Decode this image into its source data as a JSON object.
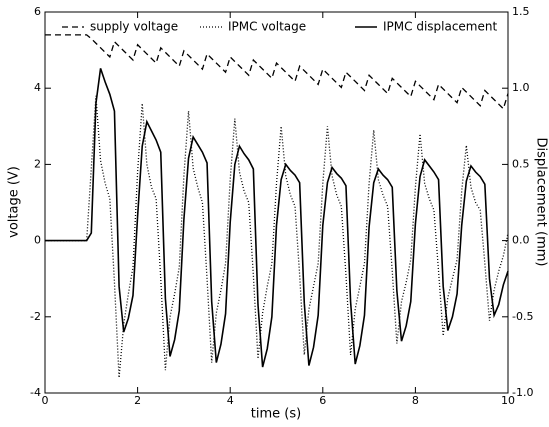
{
  "chart_data": {
    "type": "line",
    "xlabel": "time (s)",
    "ylabel": "voltage (V)",
    "y2label": "Displacement (mm)",
    "xlim": [
      0,
      10
    ],
    "ylim": [
      -4,
      6
    ],
    "y2lim": [
      -1.0,
      1.5
    ],
    "xticks": [
      0,
      2,
      4,
      6,
      8,
      10
    ],
    "yticks": [
      -4,
      -2,
      0,
      2,
      4,
      6
    ],
    "y2ticks": [
      {
        "value": -1.0,
        "label": "-1.0"
      },
      -0.5,
      {
        "value": 0.0,
        "label": "0.0"
      },
      0.5,
      {
        "value": 1.0,
        "label": "1.0"
      },
      1.5
    ],
    "legend": "top",
    "x": [
      0,
      0.1,
      0.2,
      0.3,
      0.4,
      0.5,
      0.6,
      0.7,
      0.8,
      0.9,
      1.0,
      1.1,
      1.2,
      1.3,
      1.4,
      1.5,
      1.6,
      1.7,
      1.8,
      1.9,
      2.0,
      2.1,
      2.2,
      2.3,
      2.4,
      2.5,
      2.6,
      2.7,
      2.8,
      2.9,
      3.0,
      3.1,
      3.2,
      3.3,
      3.4,
      3.5,
      3.6,
      3.7,
      3.8,
      3.9,
      4.0,
      4.1,
      4.2,
      4.3,
      4.4,
      4.5,
      4.6,
      4.7,
      4.8,
      4.9,
      5.0,
      5.1,
      5.2,
      5.3,
      5.4,
      5.5,
      5.6,
      5.7,
      5.8,
      5.9,
      6.0,
      6.1,
      6.2,
      6.3,
      6.4,
      6.5,
      6.6,
      6.7,
      6.8,
      6.9,
      7.0,
      7.1,
      7.2,
      7.3,
      7.4,
      7.5,
      7.6,
      7.7,
      7.8,
      7.9,
      8.0,
      8.1,
      8.2,
      8.3,
      8.4,
      8.5,
      8.6,
      8.7,
      8.8,
      8.9,
      9.0,
      9.1,
      9.2,
      9.3,
      9.4,
      9.5,
      9.6,
      9.7,
      9.8,
      9.9,
      10.0
    ],
    "series": [
      {
        "name": "supply voltage",
        "color": "#000000",
        "line_style": "dashed",
        "values": [
          5.4,
          5.4,
          5.4,
          5.4,
          5.4,
          5.4,
          5.4,
          5.4,
          5.4,
          5.4,
          5.3,
          5.18,
          5.06,
          4.94,
          4.82,
          5.22,
          5.1,
          4.98,
          4.86,
          4.74,
          5.14,
          5.02,
          4.9,
          4.78,
          4.66,
          5.06,
          4.94,
          4.82,
          4.7,
          4.58,
          4.98,
          4.86,
          4.74,
          4.62,
          4.5,
          4.9,
          4.78,
          4.66,
          4.54,
          4.42,
          4.82,
          4.7,
          4.58,
          4.46,
          4.34,
          4.74,
          4.62,
          4.5,
          4.38,
          4.26,
          4.66,
          4.54,
          4.42,
          4.3,
          4.18,
          4.58,
          4.46,
          4.34,
          4.22,
          4.1,
          4.5,
          4.38,
          4.26,
          4.14,
          4.02,
          4.42,
          4.3,
          4.18,
          4.06,
          3.94,
          4.34,
          4.22,
          4.1,
          3.98,
          3.86,
          4.26,
          4.14,
          4.02,
          3.9,
          3.78,
          4.18,
          4.06,
          3.94,
          3.82,
          3.7,
          4.1,
          3.98,
          3.86,
          3.74,
          3.62,
          4.02,
          3.9,
          3.78,
          3.66,
          3.54,
          3.94,
          3.82,
          3.7,
          3.58,
          3.46,
          3.86
        ]
      },
      {
        "name": "IPMC voltage",
        "color": "#000000",
        "line_style": "dotted",
        "values": [
          0,
          0,
          0,
          0,
          0,
          0,
          0,
          0,
          0,
          0,
          1.9,
          3.8,
          2.1,
          1.5,
          1.1,
          -1.1,
          -3.6,
          -2.2,
          -1.4,
          -0.7,
          1.8,
          3.6,
          2.0,
          1.4,
          1.1,
          -1.0,
          -3.4,
          -2.0,
          -1.4,
          -0.7,
          1.7,
          3.4,
          1.9,
          1.4,
          1.0,
          -1.0,
          -3.2,
          -1.9,
          -1.3,
          -0.6,
          1.6,
          3.2,
          1.8,
          1.3,
          1.0,
          -0.9,
          -3.1,
          -1.9,
          -1.2,
          -0.6,
          1.5,
          3.0,
          1.7,
          1.2,
          0.9,
          -0.9,
          -3.0,
          -1.8,
          -1.2,
          -0.6,
          1.5,
          3.0,
          1.7,
          1.2,
          0.9,
          -0.9,
          -3.0,
          -1.8,
          -1.2,
          -0.6,
          1.5,
          2.9,
          1.6,
          1.2,
          0.9,
          -0.8,
          -2.7,
          -1.6,
          -1.1,
          -0.5,
          1.4,
          2.8,
          1.5,
          1.1,
          0.8,
          -0.8,
          -2.5,
          -1.5,
          -1.0,
          -0.5,
          1.3,
          2.5,
          1.4,
          1.0,
          0.8,
          -0.6,
          -2.1,
          -1.3,
          -0.8,
          -0.4,
          0.2
        ]
      },
      {
        "name": "IPMC displacement",
        "color": "#000000",
        "line_style": "solid",
        "axis": "y2",
        "values": [
          0,
          0,
          0,
          0,
          0,
          0,
          0,
          0,
          0,
          0,
          0.05,
          0.9,
          1.13,
          1.04,
          0.96,
          0.85,
          -0.3,
          -0.6,
          -0.51,
          -0.36,
          0.16,
          0.62,
          0.78,
          0.72,
          0.66,
          0.58,
          -0.38,
          -0.76,
          -0.65,
          -0.46,
          0.14,
          0.54,
          0.68,
          0.63,
          0.58,
          0.51,
          -0.4,
          -0.8,
          -0.68,
          -0.48,
          0.12,
          0.5,
          0.62,
          0.57,
          0.53,
          0.47,
          -0.42,
          -0.83,
          -0.71,
          -0.5,
          0.1,
          0.4,
          0.5,
          0.46,
          0.43,
          0.38,
          -0.41,
          -0.82,
          -0.7,
          -0.49,
          0.1,
          0.38,
          0.48,
          0.44,
          0.41,
          0.36,
          -0.4,
          -0.81,
          -0.69,
          -0.49,
          0.09,
          0.38,
          0.47,
          0.43,
          0.4,
          0.35,
          -0.33,
          -0.66,
          -0.56,
          -0.4,
          0.11,
          0.42,
          0.53,
          0.49,
          0.45,
          0.4,
          -0.3,
          -0.59,
          -0.5,
          -0.35,
          0.1,
          0.39,
          0.49,
          0.45,
          0.42,
          0.37,
          -0.25,
          -0.49,
          -0.42,
          -0.29,
          -0.2
        ]
      }
    ]
  }
}
